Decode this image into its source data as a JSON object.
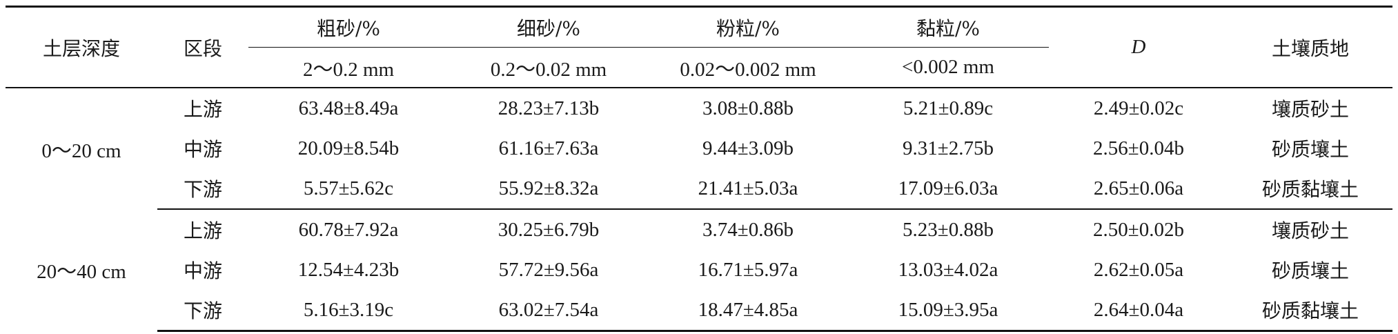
{
  "table": {
    "headers": {
      "depth": "土层深度",
      "segment": "区段",
      "coarse_sand": "粗砂/%",
      "coarse_sand_range": "2～0.2 mm",
      "fine_sand": "细砂/%",
      "fine_sand_range": "0.2～0.02 mm",
      "silt": "粉粒/%",
      "silt_range": "0.02～0.002 mm",
      "clay": "黏粒/%",
      "clay_range": "<0.002 mm",
      "d": "D",
      "texture": "土壤质地"
    },
    "groups": [
      {
        "depth": "0～20 cm",
        "rows": [
          {
            "segment": "上游",
            "coarse": "63.48±8.49a",
            "fine": "28.23±7.13b",
            "silt": "3.08±0.88b",
            "clay": "5.21±0.89c",
            "d": "2.49±0.02c",
            "texture": "壤质砂土"
          },
          {
            "segment": "中游",
            "coarse": "20.09±8.54b",
            "fine": "61.16±7.63a",
            "silt": "9.44±3.09b",
            "clay": "9.31±2.75b",
            "d": "2.56±0.04b",
            "texture": "砂质壤土"
          },
          {
            "segment": "下游",
            "coarse": "5.57±5.62c",
            "fine": "55.92±8.32a",
            "silt": "21.41±5.03a",
            "clay": "17.09±6.03a",
            "d": "2.65±0.06a",
            "texture": "砂质黏壤土"
          }
        ]
      },
      {
        "depth": "20～40 cm",
        "rows": [
          {
            "segment": "上游",
            "coarse": "60.78±7.92a",
            "fine": "30.25±6.79b",
            "silt": "3.74±0.86b",
            "clay": "5.23±0.88b",
            "d": "2.50±0.02b",
            "texture": "壤质砂土"
          },
          {
            "segment": "中游",
            "coarse": "12.54±4.23b",
            "fine": "57.72±9.56a",
            "silt": "16.71±5.97a",
            "clay": "13.03±4.02a",
            "d": "2.62±0.05a",
            "texture": "砂质壤土"
          },
          {
            "segment": "下游",
            "coarse": "5.16±3.19c",
            "fine": "63.02±7.54a",
            "silt": "18.47±4.85a",
            "clay": "15.09±3.95a",
            "d": "2.64±0.04a",
            "texture": "砂质黏壤土"
          }
        ]
      }
    ]
  }
}
